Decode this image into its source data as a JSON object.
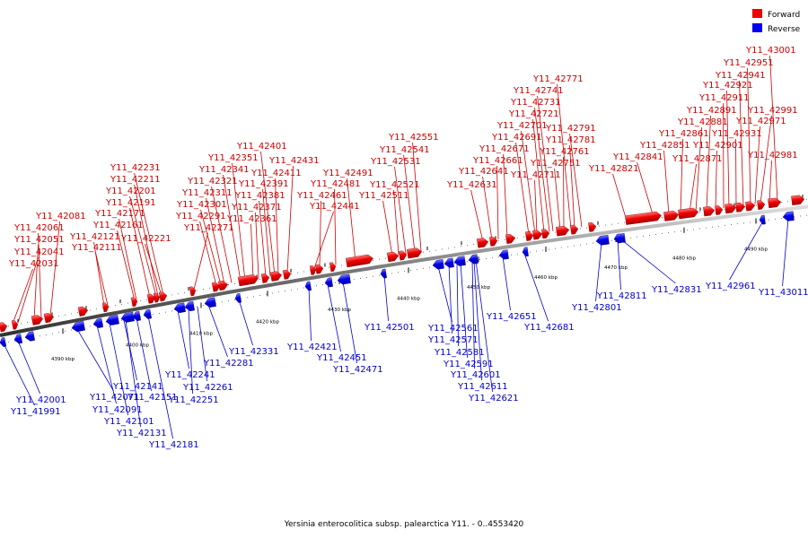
{
  "title": "Yersinia enterocolitica subsp. palearctica Y11. - 0..4553420",
  "legend": [
    {
      "name": "Forward",
      "color": "#ee0000"
    },
    {
      "name": "Reverse",
      "color": "#0000ee"
    }
  ],
  "colors": {
    "forward": "#ee0000",
    "reverse": "#0000ee",
    "forward_label": "#cc0000",
    "reverse_label": "#0000cc",
    "backbone": "#888888"
  },
  "scale_ticks": [
    "4390 kbp",
    "4400 kbp",
    "4410 kbp",
    "4420 kbp",
    "4430 kbp",
    "4440 kbp",
    "4450 kbp",
    "4460 kbp",
    "4470 kbp",
    "4480 kbp",
    "4490 kbp"
  ],
  "forward_genes": [
    "Y11_42031",
    "Y11_42041",
    "Y11_42051",
    "Y11_42061",
    "Y11_42081",
    "Y11_42111",
    "Y11_42121",
    "Y11_42161",
    "Y11_42171",
    "Y11_42191",
    "Y11_42201",
    "Y11_42211",
    "Y11_42221",
    "Y11_42231",
    "Y11_42271",
    "Y11_42291",
    "Y11_42301",
    "Y11_42311",
    "Y11_42321",
    "Y11_42341",
    "Y11_42351",
    "Y11_42361",
    "Y11_42371",
    "Y11_42381",
    "Y11_42391",
    "Y11_42401",
    "Y11_42411",
    "Y11_42431",
    "Y11_42441",
    "Y11_42461",
    "Y11_42481",
    "Y11_42491",
    "Y11_42511",
    "Y11_42521",
    "Y11_42531",
    "Y11_42541",
    "Y11_42551",
    "Y11_42631",
    "Y11_42641",
    "Y11_42661",
    "Y11_42671",
    "Y11_42691",
    "Y11_42701",
    "Y11_42711",
    "Y11_42721",
    "Y11_42731",
    "Y11_42741",
    "Y11_42751",
    "Y11_42761",
    "Y11_42771",
    "Y11_42781",
    "Y11_42791",
    "Y11_42821",
    "Y11_42841",
    "Y11_42851",
    "Y11_42861",
    "Y11_42871",
    "Y11_42881",
    "Y11_42891",
    "Y11_42901",
    "Y11_42911",
    "Y11_42921",
    "Y11_42931",
    "Y11_42941",
    "Y11_42951",
    "Y11_42971",
    "Y11_42981",
    "Y11_42991",
    "Y11_43001"
  ],
  "reverse_genes": [
    "Y11_41991",
    "Y11_42001",
    "Y11_42071",
    "Y11_42091",
    "Y11_42101",
    "Y11_42131",
    "Y11_42141",
    "Y11_42151",
    "Y11_42181",
    "Y11_42241",
    "Y11_42251",
    "Y11_42261",
    "Y11_42281",
    "Y11_42331",
    "Y11_42421",
    "Y11_42451",
    "Y11_42471",
    "Y11_42501",
    "Y11_42561",
    "Y11_42571",
    "Y11_42581",
    "Y11_42591",
    "Y11_42601",
    "Y11_42611",
    "Y11_42621",
    "Y11_42651",
    "Y11_42681",
    "Y11_42801",
    "Y11_42811",
    "Y11_42831",
    "Y11_42961",
    "Y11_43011"
  ]
}
